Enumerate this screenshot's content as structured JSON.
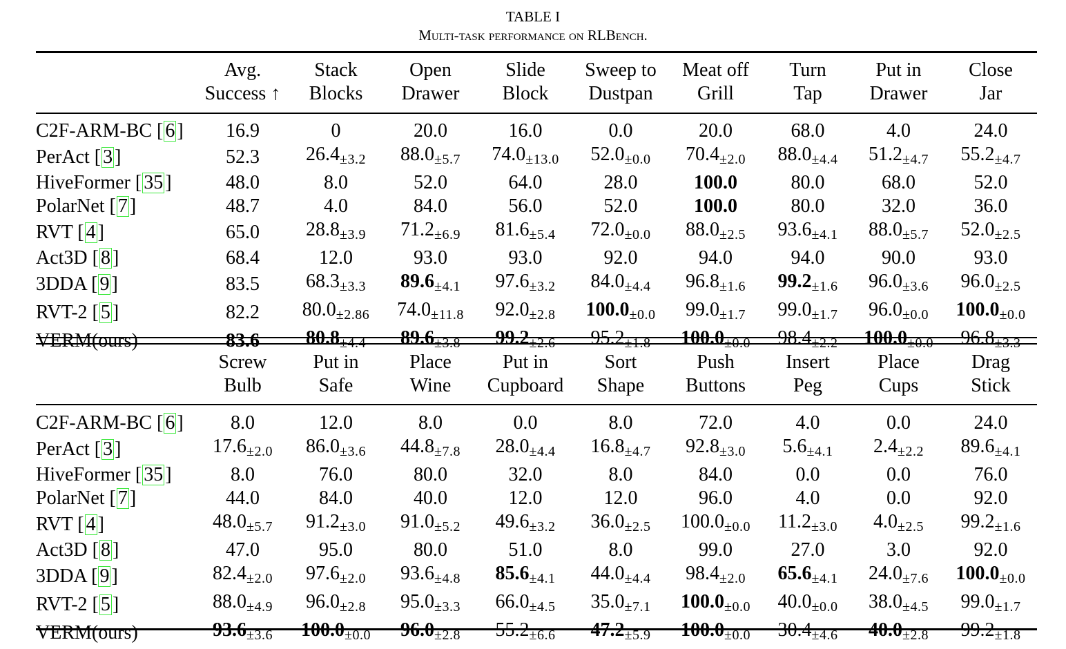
{
  "title": "TABLE I",
  "caption": "Multi-task performance on RLBench.",
  "colors": {
    "citation_box": "#3ee83e"
  },
  "tables": [
    {
      "headers": [
        [
          "Avg.",
          "Success ↑"
        ],
        [
          "Stack",
          "Blocks"
        ],
        [
          "Open",
          "Drawer"
        ],
        [
          "Slide",
          "Block"
        ],
        [
          "Sweep to",
          "Dustpan"
        ],
        [
          "Meat off",
          "Grill"
        ],
        [
          "Turn",
          "Tap"
        ],
        [
          "Put in",
          "Drawer"
        ],
        [
          "Close",
          "Jar"
        ]
      ],
      "rows": [
        {
          "method": "C2F-ARM-BC",
          "cite": "6",
          "cells": [
            {
              "v": "16.9"
            },
            {
              "v": "0"
            },
            {
              "v": "20.0"
            },
            {
              "v": "16.0"
            },
            {
              "v": "0.0"
            },
            {
              "v": "20.0"
            },
            {
              "v": "68.0"
            },
            {
              "v": "4.0"
            },
            {
              "v": "24.0"
            }
          ]
        },
        {
          "method": "PerAct",
          "cite": "3",
          "cells": [
            {
              "v": "52.3"
            },
            {
              "v": "26.4",
              "sd": "±3.2"
            },
            {
              "v": "88.0",
              "sd": "±5.7"
            },
            {
              "v": "74.0",
              "sd": "±13.0"
            },
            {
              "v": "52.0",
              "sd": "±0.0"
            },
            {
              "v": "70.4",
              "sd": "±2.0"
            },
            {
              "v": "88.0",
              "sd": "±4.4"
            },
            {
              "v": "51.2",
              "sd": "±4.7"
            },
            {
              "v": "55.2",
              "sd": "±4.7"
            }
          ]
        },
        {
          "method": "HiveFormer",
          "cite": "35",
          "cells": [
            {
              "v": "48.0"
            },
            {
              "v": "8.0"
            },
            {
              "v": "52.0"
            },
            {
              "v": "64.0"
            },
            {
              "v": "28.0"
            },
            {
              "v": "100.0",
              "bold": true
            },
            {
              "v": "80.0"
            },
            {
              "v": "68.0"
            },
            {
              "v": "52.0"
            }
          ]
        },
        {
          "method": "PolarNet",
          "cite": "7",
          "cells": [
            {
              "v": "48.7"
            },
            {
              "v": "4.0"
            },
            {
              "v": "84.0"
            },
            {
              "v": "56.0"
            },
            {
              "v": "52.0"
            },
            {
              "v": "100.0",
              "bold": true
            },
            {
              "v": "80.0"
            },
            {
              "v": "32.0"
            },
            {
              "v": "36.0"
            }
          ]
        },
        {
          "method": "RVT",
          "cite": "4",
          "cells": [
            {
              "v": "65.0"
            },
            {
              "v": "28.8",
              "sd": "±3.9"
            },
            {
              "v": "71.2",
              "sd": "±6.9"
            },
            {
              "v": "81.6",
              "sd": "±5.4"
            },
            {
              "v": "72.0",
              "sd": "±0.0"
            },
            {
              "v": "88.0",
              "sd": "±2.5"
            },
            {
              "v": "93.6",
              "sd": "±4.1"
            },
            {
              "v": "88.0",
              "sd": "±5.7"
            },
            {
              "v": "52.0",
              "sd": "±2.5"
            }
          ]
        },
        {
          "method": "Act3D",
          "cite": "8",
          "cells": [
            {
              "v": "68.4"
            },
            {
              "v": "12.0"
            },
            {
              "v": "93.0"
            },
            {
              "v": "93.0"
            },
            {
              "v": "92.0"
            },
            {
              "v": "94.0"
            },
            {
              "v": "94.0"
            },
            {
              "v": "90.0"
            },
            {
              "v": "93.0"
            }
          ]
        },
        {
          "method": "3DDA",
          "cite": "9",
          "cells": [
            {
              "v": "83.5"
            },
            {
              "v": "68.3",
              "sd": "±3.3"
            },
            {
              "v": "89.6",
              "sd": "±4.1",
              "bold": true
            },
            {
              "v": "97.6",
              "sd": "±3.2"
            },
            {
              "v": "84.0",
              "sd": "±4.4"
            },
            {
              "v": "96.8",
              "sd": "±1.6"
            },
            {
              "v": "99.2",
              "sd": "±1.6",
              "bold": true
            },
            {
              "v": "96.0",
              "sd": "±3.6"
            },
            {
              "v": "96.0",
              "sd": "±2.5"
            }
          ]
        },
        {
          "method": "RVT-2",
          "cite": "5",
          "cells": [
            {
              "v": "82.2"
            },
            {
              "v": "80.0",
              "sd": "±2.86"
            },
            {
              "v": "74.0",
              "sd": "±11.8"
            },
            {
              "v": "92.0",
              "sd": "±2.8"
            },
            {
              "v": "100.0",
              "sd": "±0.0",
              "bold": true
            },
            {
              "v": "99.0",
              "sd": "±1.7"
            },
            {
              "v": "99.0",
              "sd": "±1.7"
            },
            {
              "v": "96.0",
              "sd": "±0.0"
            },
            {
              "v": "100.0",
              "sd": "±0.0",
              "bold": true
            }
          ]
        },
        {
          "method": "VERM(ours)",
          "cells": [
            {
              "v": "83.6",
              "bold": true
            },
            {
              "v": "80.8",
              "sd": "±4.4",
              "bold": true
            },
            {
              "v": "89.6",
              "sd": "±3.8",
              "bold": true
            },
            {
              "v": "99.2",
              "sd": "±2.6",
              "bold": true
            },
            {
              "v": "95.2",
              "sd": "±1.8"
            },
            {
              "v": "100.0",
              "sd": "±0.0",
              "bold": true
            },
            {
              "v": "98.4",
              "sd": "±2.2"
            },
            {
              "v": "100.0",
              "sd": "±0.0",
              "bold": true
            },
            {
              "v": "96.8",
              "sd": "±3.3"
            }
          ]
        }
      ]
    },
    {
      "headers": [
        [
          "Screw",
          "Bulb"
        ],
        [
          "Put in",
          "Safe"
        ],
        [
          "Place",
          "Wine"
        ],
        [
          "Put in",
          "Cupboard"
        ],
        [
          "Sort",
          "Shape"
        ],
        [
          "Push",
          "Buttons"
        ],
        [
          "Insert",
          "Peg"
        ],
        [
          "Place",
          "Cups"
        ],
        [
          "Drag",
          "Stick"
        ]
      ],
      "rows": [
        {
          "method": "C2F-ARM-BC",
          "cite": "6",
          "cells": [
            {
              "v": "8.0"
            },
            {
              "v": "12.0"
            },
            {
              "v": "8.0"
            },
            {
              "v": "0.0"
            },
            {
              "v": "8.0"
            },
            {
              "v": "72.0"
            },
            {
              "v": "4.0"
            },
            {
              "v": "0.0"
            },
            {
              "v": "24.0"
            }
          ]
        },
        {
          "method": "PerAct",
          "cite": "3",
          "cells": [
            {
              "v": "17.6",
              "sd": "±2.0"
            },
            {
              "v": "86.0",
              "sd": "±3.6"
            },
            {
              "v": "44.8",
              "sd": "±7.8"
            },
            {
              "v": "28.0",
              "sd": "±4.4"
            },
            {
              "v": "16.8",
              "sd": "±4.7"
            },
            {
              "v": "92.8",
              "sd": "±3.0"
            },
            {
              "v": "5.6",
              "sd": "±4.1"
            },
            {
              "v": "2.4",
              "sd": "±2.2"
            },
            {
              "v": "89.6",
              "sd": "±4.1"
            }
          ]
        },
        {
          "method": "HiveFormer",
          "cite": "35",
          "cells": [
            {
              "v": "8.0"
            },
            {
              "v": "76.0"
            },
            {
              "v": "80.0"
            },
            {
              "v": "32.0"
            },
            {
              "v": "8.0"
            },
            {
              "v": "84.0"
            },
            {
              "v": "0.0"
            },
            {
              "v": "0.0"
            },
            {
              "v": "76.0"
            }
          ]
        },
        {
          "method": "PolarNet",
          "cite": "7",
          "cells": [
            {
              "v": "44.0"
            },
            {
              "v": "84.0"
            },
            {
              "v": "40.0"
            },
            {
              "v": "12.0"
            },
            {
              "v": "12.0"
            },
            {
              "v": "96.0"
            },
            {
              "v": "4.0"
            },
            {
              "v": "0.0"
            },
            {
              "v": "92.0"
            }
          ]
        },
        {
          "method": "RVT",
          "cite": "4",
          "cells": [
            {
              "v": "48.0",
              "sd": "±5.7"
            },
            {
              "v": "91.2",
              "sd": "±3.0"
            },
            {
              "v": "91.0",
              "sd": "±5.2"
            },
            {
              "v": "49.6",
              "sd": "±3.2"
            },
            {
              "v": "36.0",
              "sd": "±2.5"
            },
            {
              "v": "100.0",
              "sd": "±0.0"
            },
            {
              "v": "11.2",
              "sd": "±3.0"
            },
            {
              "v": "4.0",
              "sd": "±2.5"
            },
            {
              "v": "99.2",
              "sd": "±1.6"
            }
          ]
        },
        {
          "method": "Act3D",
          "cite": "8",
          "cells": [
            {
              "v": "47.0"
            },
            {
              "v": "95.0"
            },
            {
              "v": "80.0"
            },
            {
              "v": "51.0"
            },
            {
              "v": "8.0"
            },
            {
              "v": "99.0"
            },
            {
              "v": "27.0"
            },
            {
              "v": "3.0"
            },
            {
              "v": "92.0"
            }
          ]
        },
        {
          "method": "3DDA",
          "cite": "9",
          "cells": [
            {
              "v": "82.4",
              "sd": "±2.0"
            },
            {
              "v": "97.6",
              "sd": "±2.0"
            },
            {
              "v": "93.6",
              "sd": "±4.8"
            },
            {
              "v": "85.6",
              "sd": "±4.1",
              "bold": true
            },
            {
              "v": "44.0",
              "sd": "±4.4"
            },
            {
              "v": "98.4",
              "sd": "±2.0"
            },
            {
              "v": "65.6",
              "sd": "±4.1",
              "bold": true
            },
            {
              "v": "24.0",
              "sd": "±7.6"
            },
            {
              "v": "100.0",
              "sd": "±0.0",
              "bold": true
            }
          ]
        },
        {
          "method": "RVT-2",
          "cite": "5",
          "cells": [
            {
              "v": "88.0",
              "sd": "±4.9"
            },
            {
              "v": "96.0",
              "sd": "±2.8"
            },
            {
              "v": "95.0",
              "sd": "±3.3"
            },
            {
              "v": "66.0",
              "sd": "±4.5"
            },
            {
              "v": "35.0",
              "sd": "±7.1"
            },
            {
              "v": "100.0",
              "sd": "±0.0",
              "bold": true
            },
            {
              "v": "40.0",
              "sd": "±0.0"
            },
            {
              "v": "38.0",
              "sd": "±4.5"
            },
            {
              "v": "99.0",
              "sd": "±1.7"
            }
          ]
        },
        {
          "method": "VERM(ours)",
          "cells": [
            {
              "v": "93.6",
              "sd": "±3.6",
              "bold": true
            },
            {
              "v": "100.0",
              "sd": "±0.0",
              "bold": true
            },
            {
              "v": "96.0",
              "sd": "±2.8",
              "bold": true
            },
            {
              "v": "55.2",
              "sd": "±6.6"
            },
            {
              "v": "47.2",
              "sd": "±5.9",
              "bold": true
            },
            {
              "v": "100.0",
              "sd": "±0.0",
              "bold": true
            },
            {
              "v": "30.4",
              "sd": "±4.6"
            },
            {
              "v": "40.0",
              "sd": "±2.8",
              "bold": true
            },
            {
              "v": "99.2",
              "sd": "±1.8"
            }
          ]
        }
      ]
    }
  ]
}
